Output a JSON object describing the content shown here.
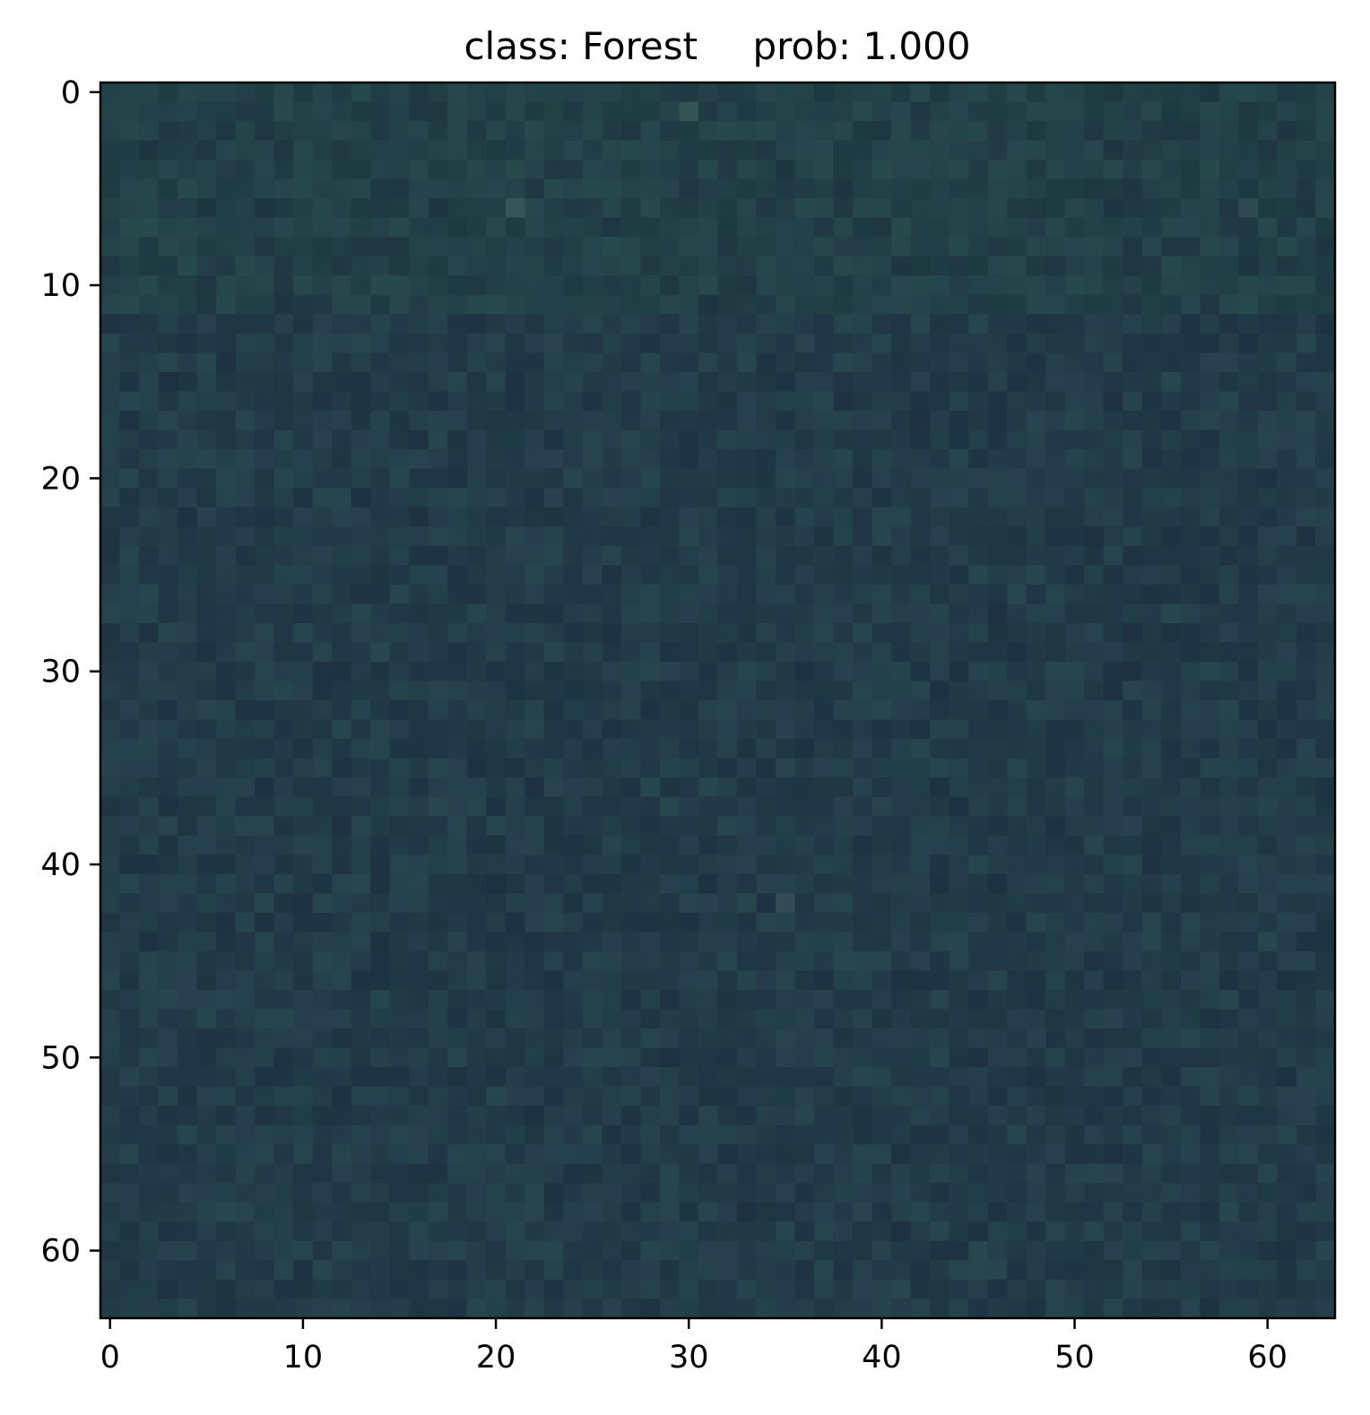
{
  "title": {
    "class_text": "class: Forest",
    "prob_text": "prob: 1.000"
  },
  "image": {
    "description_colors": {
      "base": "#223c48",
      "dark": "#1d3240",
      "light": "#2d4c55",
      "greenish": "#244a4a"
    },
    "grid_size": [
      64,
      64
    ]
  },
  "axes": {
    "x_ticks": [
      {
        "value": 0,
        "label": "0"
      },
      {
        "value": 10,
        "label": "10"
      },
      {
        "value": 20,
        "label": "20"
      },
      {
        "value": 30,
        "label": "30"
      },
      {
        "value": 40,
        "label": "40"
      },
      {
        "value": 50,
        "label": "50"
      },
      {
        "value": 60,
        "label": "60"
      }
    ],
    "y_ticks": [
      {
        "value": 0,
        "label": "0"
      },
      {
        "value": 10,
        "label": "10"
      },
      {
        "value": 20,
        "label": "20"
      },
      {
        "value": 30,
        "label": "30"
      },
      {
        "value": 40,
        "label": "40"
      },
      {
        "value": 50,
        "label": "50"
      },
      {
        "value": 60,
        "label": "60"
      }
    ],
    "x_range": [
      -0.5,
      63.5
    ],
    "y_range": [
      -0.5,
      63.5
    ]
  }
}
